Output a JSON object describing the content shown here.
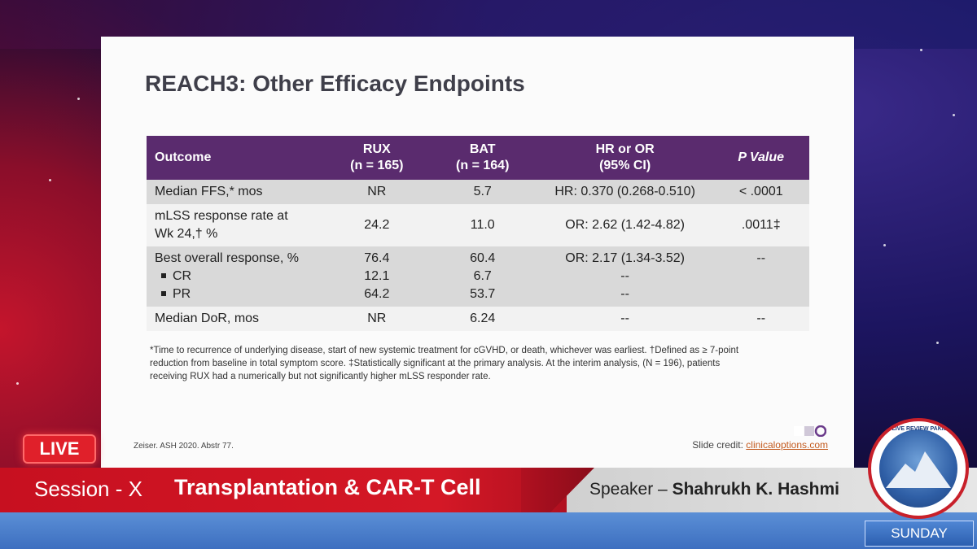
{
  "slide": {
    "title": "REACH3: Other Efficacy Endpoints",
    "table": {
      "headers": [
        {
          "line1": "Outcome",
          "line2": ""
        },
        {
          "line1": "RUX",
          "line2": "(n = 165)"
        },
        {
          "line1": "BAT",
          "line2": "(n = 164)"
        },
        {
          "line1": "HR or OR",
          "line2": "(95% CI)"
        },
        {
          "line1": "P Value",
          "line2": ""
        }
      ],
      "rows": [
        {
          "outcome": "Median FFS,* mos",
          "rux": "NR",
          "bat": "5.7",
          "ratio": "HR: 0.370 (0.268-0.510)",
          "p": "< .0001"
        },
        {
          "outcome_line1": "mLSS response rate at",
          "outcome_line2": "Wk 24,† %",
          "rux": "24.2",
          "bat": "11.0",
          "ratio": "OR: 2.62 (1.42-4.82)",
          "p": ".0011‡"
        },
        {
          "outcome": "Best overall response, %",
          "rux": "76.4",
          "bat": "60.4",
          "ratio": "OR: 2.17 (1.34-3.52)",
          "p": "--",
          "sub": [
            {
              "label": "CR",
              "rux": "12.1",
              "bat": "6.7",
              "ratio": "--"
            },
            {
              "label": "PR",
              "rux": "64.2",
              "bat": "53.7",
              "ratio": "--"
            }
          ]
        },
        {
          "outcome": "Median DoR, mos",
          "rux": "NR",
          "bat": "6.24",
          "ratio": "--",
          "p": "--"
        }
      ]
    },
    "footnote_line1": "*Time to recurrence of underlying disease, start of new systemic treatment for cGVHD, or death, whichever was earliest. †Defined as ≥ 7-point",
    "footnote_line2": "reduction from baseline in total symptom score. ‡Statistically significant at the primary analysis. At the interim analysis, (N = 196), patients",
    "footnote_line3": "receiving RUX had a numerically but not significantly higher mLSS responder rate.",
    "reference": "Zeiser. ASH 2020. Abstr 77.",
    "credit_label": "Slide credit: ",
    "credit_link": "clinicaloptions.com"
  },
  "overlay": {
    "live": "LIVE",
    "session_label": "Session - X",
    "session_title": "Transplantation & CAR-T Cell",
    "speaker_label": "Speaker – ",
    "speaker_name": "Shahrukh K. Hashmi",
    "badge_text": "ASH LIVE REVIEW PAKISTAN",
    "day": "SUNDAY"
  },
  "colors": {
    "header_purple": "#5a2b6e",
    "live_red": "#e0202a",
    "bar_red": "#c71020",
    "link_orange": "#c35a1e"
  }
}
